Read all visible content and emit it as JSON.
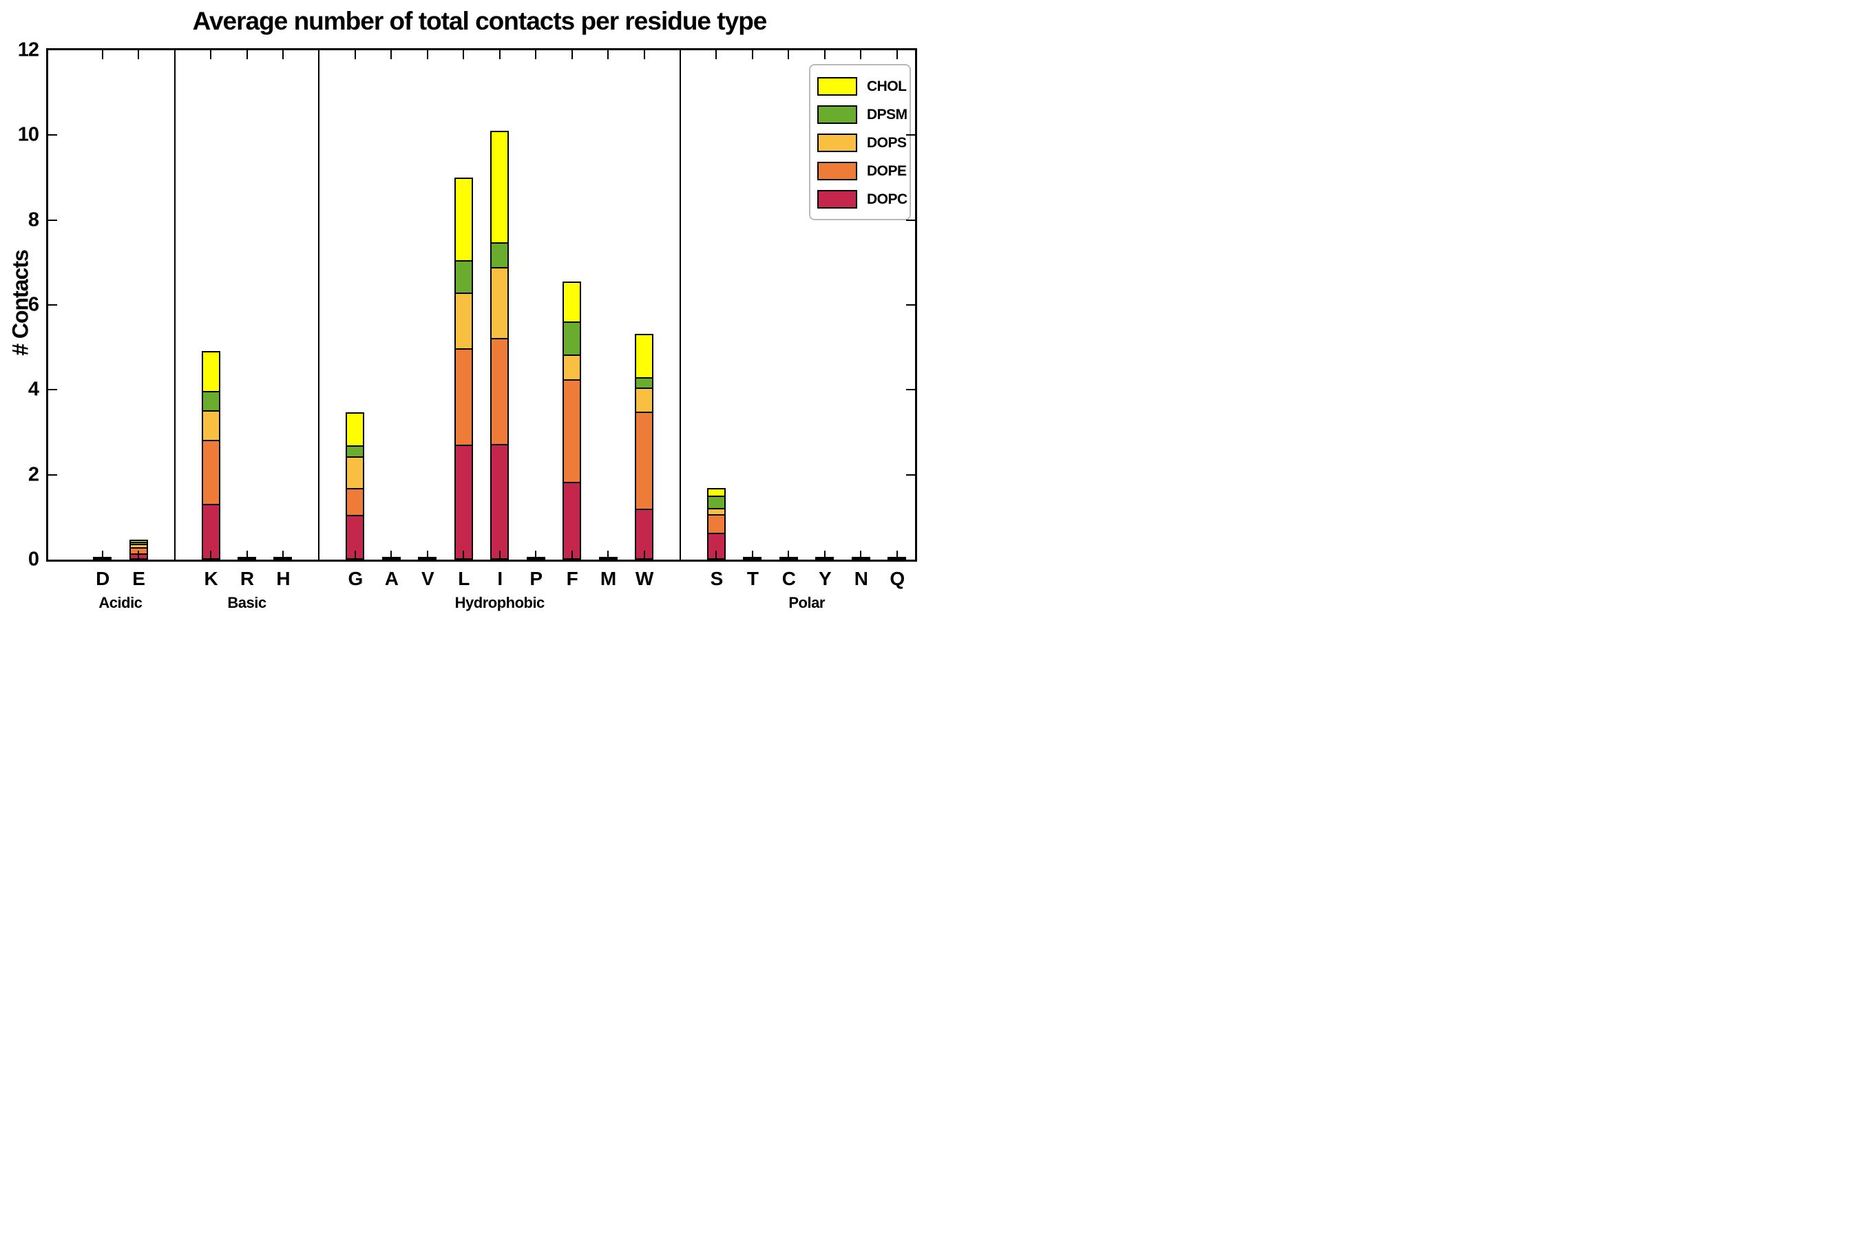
{
  "title": "Average number of total contacts per residue type",
  "ylabel": "# Contacts",
  "chart_data": {
    "type": "bar",
    "stacked": true,
    "title": "Average number of total contacts per residue type",
    "xlabel": "",
    "ylabel": "# Contacts",
    "ylim": [
      0,
      12
    ],
    "yticks": [
      0,
      2,
      4,
      6,
      8,
      10,
      12
    ],
    "grid": false,
    "legend_position": "upper right",
    "legend_order": [
      "CHOL",
      "DPSM",
      "DOPS",
      "DOPE",
      "DOPC"
    ],
    "bar_edge_color": "#000000",
    "groups": [
      {
        "label": "Acidic",
        "categories": [
          "D",
          "E"
        ]
      },
      {
        "label": "Basic",
        "categories": [
          "K",
          "R",
          "H"
        ]
      },
      {
        "label": "Hydrophobic",
        "categories": [
          "G",
          "A",
          "V",
          "L",
          "I",
          "P",
          "F",
          "M",
          "W"
        ]
      },
      {
        "label": "Polar",
        "categories": [
          "S",
          "T",
          "C",
          "Y",
          "N",
          "Q"
        ]
      }
    ],
    "categories": [
      "D",
      "E",
      "K",
      "R",
      "H",
      "G",
      "A",
      "V",
      "L",
      "I",
      "P",
      "F",
      "M",
      "W",
      "S",
      "T",
      "C",
      "Y",
      "N",
      "Q"
    ],
    "series": [
      {
        "name": "DOPC",
        "color": "#C4274B",
        "values": [
          0.01,
          0.14,
          1.32,
          0.01,
          0.01,
          1.05,
          0.01,
          0.01,
          2.71,
          2.72,
          0.01,
          1.84,
          0.01,
          1.2,
          0.63,
          0.01,
          0.01,
          0.01,
          0.01,
          0.01
        ]
      },
      {
        "name": "DOPE",
        "color": "#EE7B38",
        "values": [
          0.01,
          0.16,
          1.5,
          0.01,
          0.01,
          0.63,
          0.01,
          0.01,
          2.27,
          2.5,
          0.01,
          2.41,
          0.01,
          2.29,
          0.44,
          0.01,
          0.01,
          0.01,
          0.01,
          0.01
        ]
      },
      {
        "name": "DOPS",
        "color": "#F9BF41",
        "values": [
          0,
          0.08,
          0.7,
          0,
          0,
          0.76,
          0,
          0,
          1.31,
          1.68,
          0,
          0.58,
          0,
          0.57,
          0.14,
          0,
          0,
          0,
          0,
          0
        ]
      },
      {
        "name": "DPSM",
        "color": "#69AC2E",
        "values": [
          0,
          0.04,
          0.45,
          0,
          0,
          0.26,
          0,
          0,
          0.77,
          0.58,
          0,
          0.78,
          0,
          0.24,
          0.3,
          0,
          0,
          0,
          0,
          0
        ]
      },
      {
        "name": "CHOL",
        "color": "#FFFF00",
        "values": [
          0,
          0.05,
          0.95,
          0,
          0,
          0.77,
          0,
          0,
          1.94,
          2.63,
          0,
          0.94,
          0,
          1.02,
          0.18,
          0,
          0,
          0,
          0,
          0
        ]
      }
    ],
    "totals": {
      "E": 0.47,
      "K": 4.92,
      "G": 3.47,
      "L": 9.0,
      "I": 10.11,
      "F": 6.55,
      "W": 5.32,
      "S": 1.69
    }
  }
}
